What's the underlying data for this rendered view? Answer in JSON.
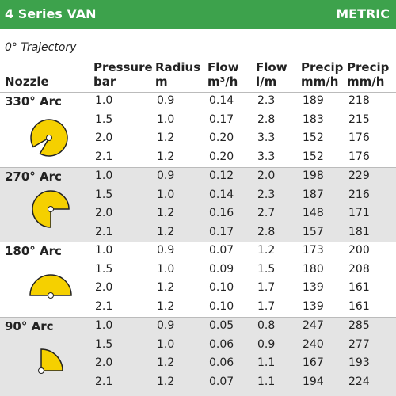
{
  "header": {
    "title": "4 Series VAN",
    "unit": "METRIC"
  },
  "trajectory": "0° Trajectory",
  "nozzle_label": "Nozzle",
  "columns": [
    {
      "line1": "Pressure",
      "line2": "bar"
    },
    {
      "line1": "Radius",
      "line2": "m"
    },
    {
      "line1": "Flow",
      "line2": "m³/h"
    },
    {
      "line1": "Flow",
      "line2": "l/m"
    },
    {
      "line1": "Precip",
      "line2": "mm/h"
    },
    {
      "line1": "Precip",
      "line2": "mm/h"
    }
  ],
  "groups": [
    {
      "label": "330° Arc",
      "rows": [
        [
          "1.0",
          "0.9",
          "0.14",
          "2.3",
          "189",
          "218"
        ],
        [
          "1.5",
          "1.0",
          "0.17",
          "2.8",
          "183",
          "215"
        ],
        [
          "2.0",
          "1.2",
          "0.20",
          "3.3",
          "152",
          "176"
        ],
        [
          "2.1",
          "1.2",
          "0.20",
          "3.3",
          "152",
          "176"
        ]
      ]
    },
    {
      "label": "270° Arc",
      "rows": [
        [
          "1.0",
          "0.9",
          "0.12",
          "2.0",
          "198",
          "229"
        ],
        [
          "1.5",
          "1.0",
          "0.14",
          "2.3",
          "187",
          "216"
        ],
        [
          "2.0",
          "1.2",
          "0.16",
          "2.7",
          "148",
          "171"
        ],
        [
          "2.1",
          "1.2",
          "0.17",
          "2.8",
          "157",
          "181"
        ]
      ]
    },
    {
      "label": "180° Arc",
      "rows": [
        [
          "1.0",
          "0.9",
          "0.07",
          "1.2",
          "173",
          "200"
        ],
        [
          "1.5",
          "1.0",
          "0.09",
          "1.5",
          "180",
          "208"
        ],
        [
          "2.0",
          "1.2",
          "0.10",
          "1.7",
          "139",
          "161"
        ],
        [
          "2.1",
          "1.2",
          "0.10",
          "1.7",
          "139",
          "161"
        ]
      ]
    },
    {
      "label": "90° Arc",
      "rows": [
        [
          "1.0",
          "0.9",
          "0.05",
          "0.8",
          "247",
          "285"
        ],
        [
          "1.5",
          "1.0",
          "0.06",
          "0.9",
          "240",
          "277"
        ],
        [
          "2.0",
          "1.2",
          "0.06",
          "1.1",
          "167",
          "193"
        ],
        [
          "2.1",
          "1.2",
          "0.07",
          "1.1",
          "194",
          "224"
        ]
      ]
    }
  ]
}
